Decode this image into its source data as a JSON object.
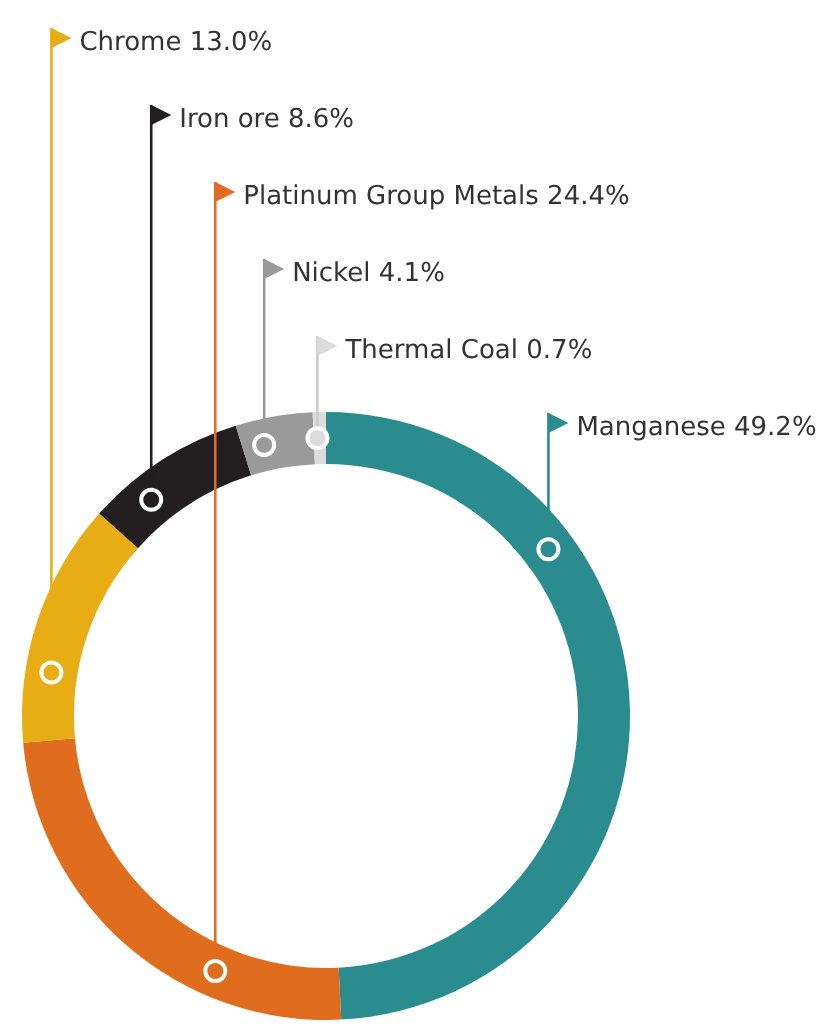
{
  "chart_data": {
    "type": "donut",
    "categories": [
      "Manganese",
      "Platinum Group Metals",
      "Chrome",
      "Iron ore",
      "Nickel",
      "Thermal Coal"
    ],
    "values": [
      49.2,
      24.4,
      13.0,
      8.6,
      4.1,
      0.7
    ],
    "value_labels": [
      "49.2%",
      "24.4%",
      "13.0%",
      "8.6%",
      "4.1%",
      "0.7%"
    ],
    "legend": "top right",
    "colors": [
      "#2a8c8f",
      "#e06c1e",
      "#e8ad14",
      "#231f20",
      "#9a9a9a",
      "#dcdcdc"
    ]
  }
}
